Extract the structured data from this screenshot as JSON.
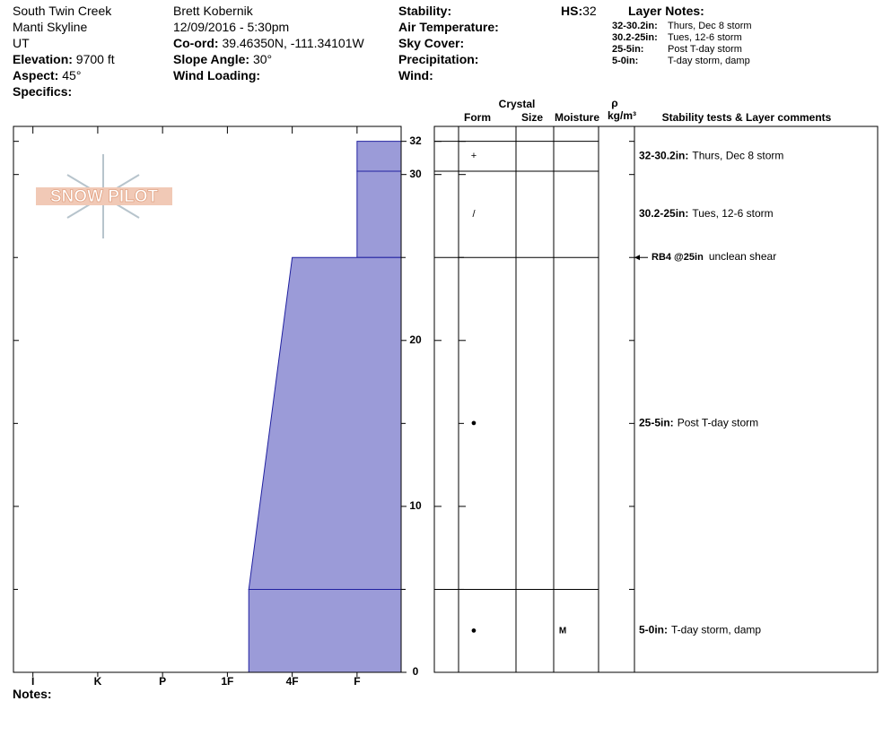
{
  "header": {
    "site": "South Twin Creek",
    "range": "Manti Skyline",
    "state": "UT",
    "elevation": {
      "label": "Elevation:",
      "value": "9700 ft"
    },
    "aspect": {
      "label": "Aspect:",
      "value": "45°"
    },
    "specifics": "Specifics:",
    "observer": "Brett Kobernik",
    "datetime": "12/09/2016 - 5:30pm",
    "coord": {
      "label": "Co-ord:",
      "value": "39.46350N, -111.34101W"
    },
    "slope": {
      "label": "Slope Angle:",
      "value": "30°"
    },
    "wind_loading": "Wind Loading:",
    "stability": "Stability:",
    "air_temperature": "Air Temperature:",
    "sky_cover": "Sky Cover:",
    "precipitation": "Precipitation:",
    "wind": "Wind:",
    "hs": {
      "label": "HS:",
      "value": "32"
    },
    "layer_notes": {
      "title": "Layer Notes:",
      "items": [
        {
          "range": "32-30.2in:",
          "text": "Thurs, Dec 8 storm"
        },
        {
          "range": "30.2-25in:",
          "text": "Tues, 12-6 storm"
        },
        {
          "range": "25-5in:",
          "text": "Post T-day storm"
        },
        {
          "range": "5-0in:",
          "text": "T-day storm, damp"
        }
      ]
    }
  },
  "logo": "SNOW PILOT",
  "profile": {
    "hardness_lim": [
      0.7,
      6.68
    ],
    "hardness_ticks": [
      {
        "value": 1,
        "label": "I"
      },
      {
        "value": 2,
        "label": "K"
      },
      {
        "value": 3,
        "label": "P"
      },
      {
        "value": 4,
        "label": "1F"
      },
      {
        "value": 5,
        "label": "4F"
      },
      {
        "value": 6,
        "label": "F"
      }
    ],
    "depth_lim": [
      0,
      32.9
    ],
    "depth_ticks": [
      0,
      10,
      20,
      30,
      32
    ],
    "depth_minor_ticks": [
      5,
      15,
      25
    ],
    "bar_color": "#9b9bd8",
    "layers": [
      {
        "top": 32,
        "bottom": 30.2,
        "hardness_top": 6,
        "hardness_bottom": 6,
        "form": "+",
        "moisture": null,
        "comment": {
          "range": "32-30.2in:",
          "text": "Thurs, Dec 8 storm"
        }
      },
      {
        "top": 30.2,
        "bottom": 25,
        "hardness_top": 6,
        "hardness_bottom": 6,
        "form": "/",
        "moisture": null,
        "comment": {
          "range": "30.2-25in:",
          "text": "Tues, 12-6 storm"
        }
      },
      {
        "top": 25,
        "bottom": 5,
        "hardness_top": 5,
        "hardness_bottom": 4.33,
        "form": "●",
        "moisture": null,
        "comment": {
          "range": "25-5in:",
          "text": "Post T-day storm"
        }
      },
      {
        "top": 5,
        "bottom": 0,
        "hardness_top": 4.33,
        "hardness_bottom": 4.33,
        "form": "●",
        "moisture": "M",
        "comment": {
          "range": "5-0in:",
          "text": "T-day storm, damp"
        }
      }
    ],
    "test": {
      "depth": 25,
      "label": "RB4 @25in",
      "text": "unclean shear"
    }
  },
  "table_header": {
    "crystal": "Crystal",
    "form": "Form",
    "size": "Size",
    "moisture": "Moisture",
    "rho": "ρ",
    "density_unit": "kg/m³",
    "comments": "Stability tests & Layer comments"
  },
  "notes": "Notes:"
}
